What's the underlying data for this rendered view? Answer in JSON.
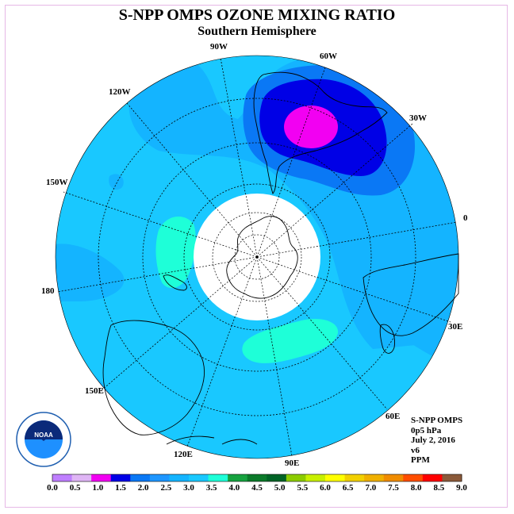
{
  "header": {
    "title": "S-NPP OMPS OZONE MIXING RATIO",
    "subtitle": "Southern Hemisphere"
  },
  "longitude_labels": {
    "w90": "90W",
    "w60": "60W",
    "w30": "30W",
    "e0": "0",
    "e30": "30E",
    "e60": "60E",
    "e90": "90E",
    "e120": "120E",
    "e150": "150E",
    "d180": "180",
    "w150": "150W",
    "w120": "120W"
  },
  "info": {
    "instrument": "S-NPP OMPS",
    "level": "0p5 hPa",
    "date": "July 2, 2016",
    "version": "v6",
    "units": "PPM"
  },
  "logo": {
    "text": "NOAA"
  },
  "colorbar": {
    "colors": [
      "#bf7fff",
      "#dfb5f5",
      "#f200f2",
      "#0000e6",
      "#0a78f5",
      "#1e96ff",
      "#14b4ff",
      "#19c8ff",
      "#1effd8",
      "#16a23f",
      "#0b7a2a",
      "#006326",
      "#8ccc00",
      "#c8f000",
      "#ffff00",
      "#f2d000",
      "#f0b000",
      "#f08c00",
      "#ff4e00",
      "#ff0000",
      "#8b5a3a"
    ],
    "tick_labels": [
      "0.0",
      "0.5",
      "1.0",
      "1.5",
      "2.0",
      "2.5",
      "3.0",
      "3.5",
      "4.0",
      "4.5",
      "5.0",
      "5.5",
      "6.0",
      "6.5",
      "7.0",
      "7.5",
      "8.0",
      "8.5",
      "9.0"
    ]
  }
}
